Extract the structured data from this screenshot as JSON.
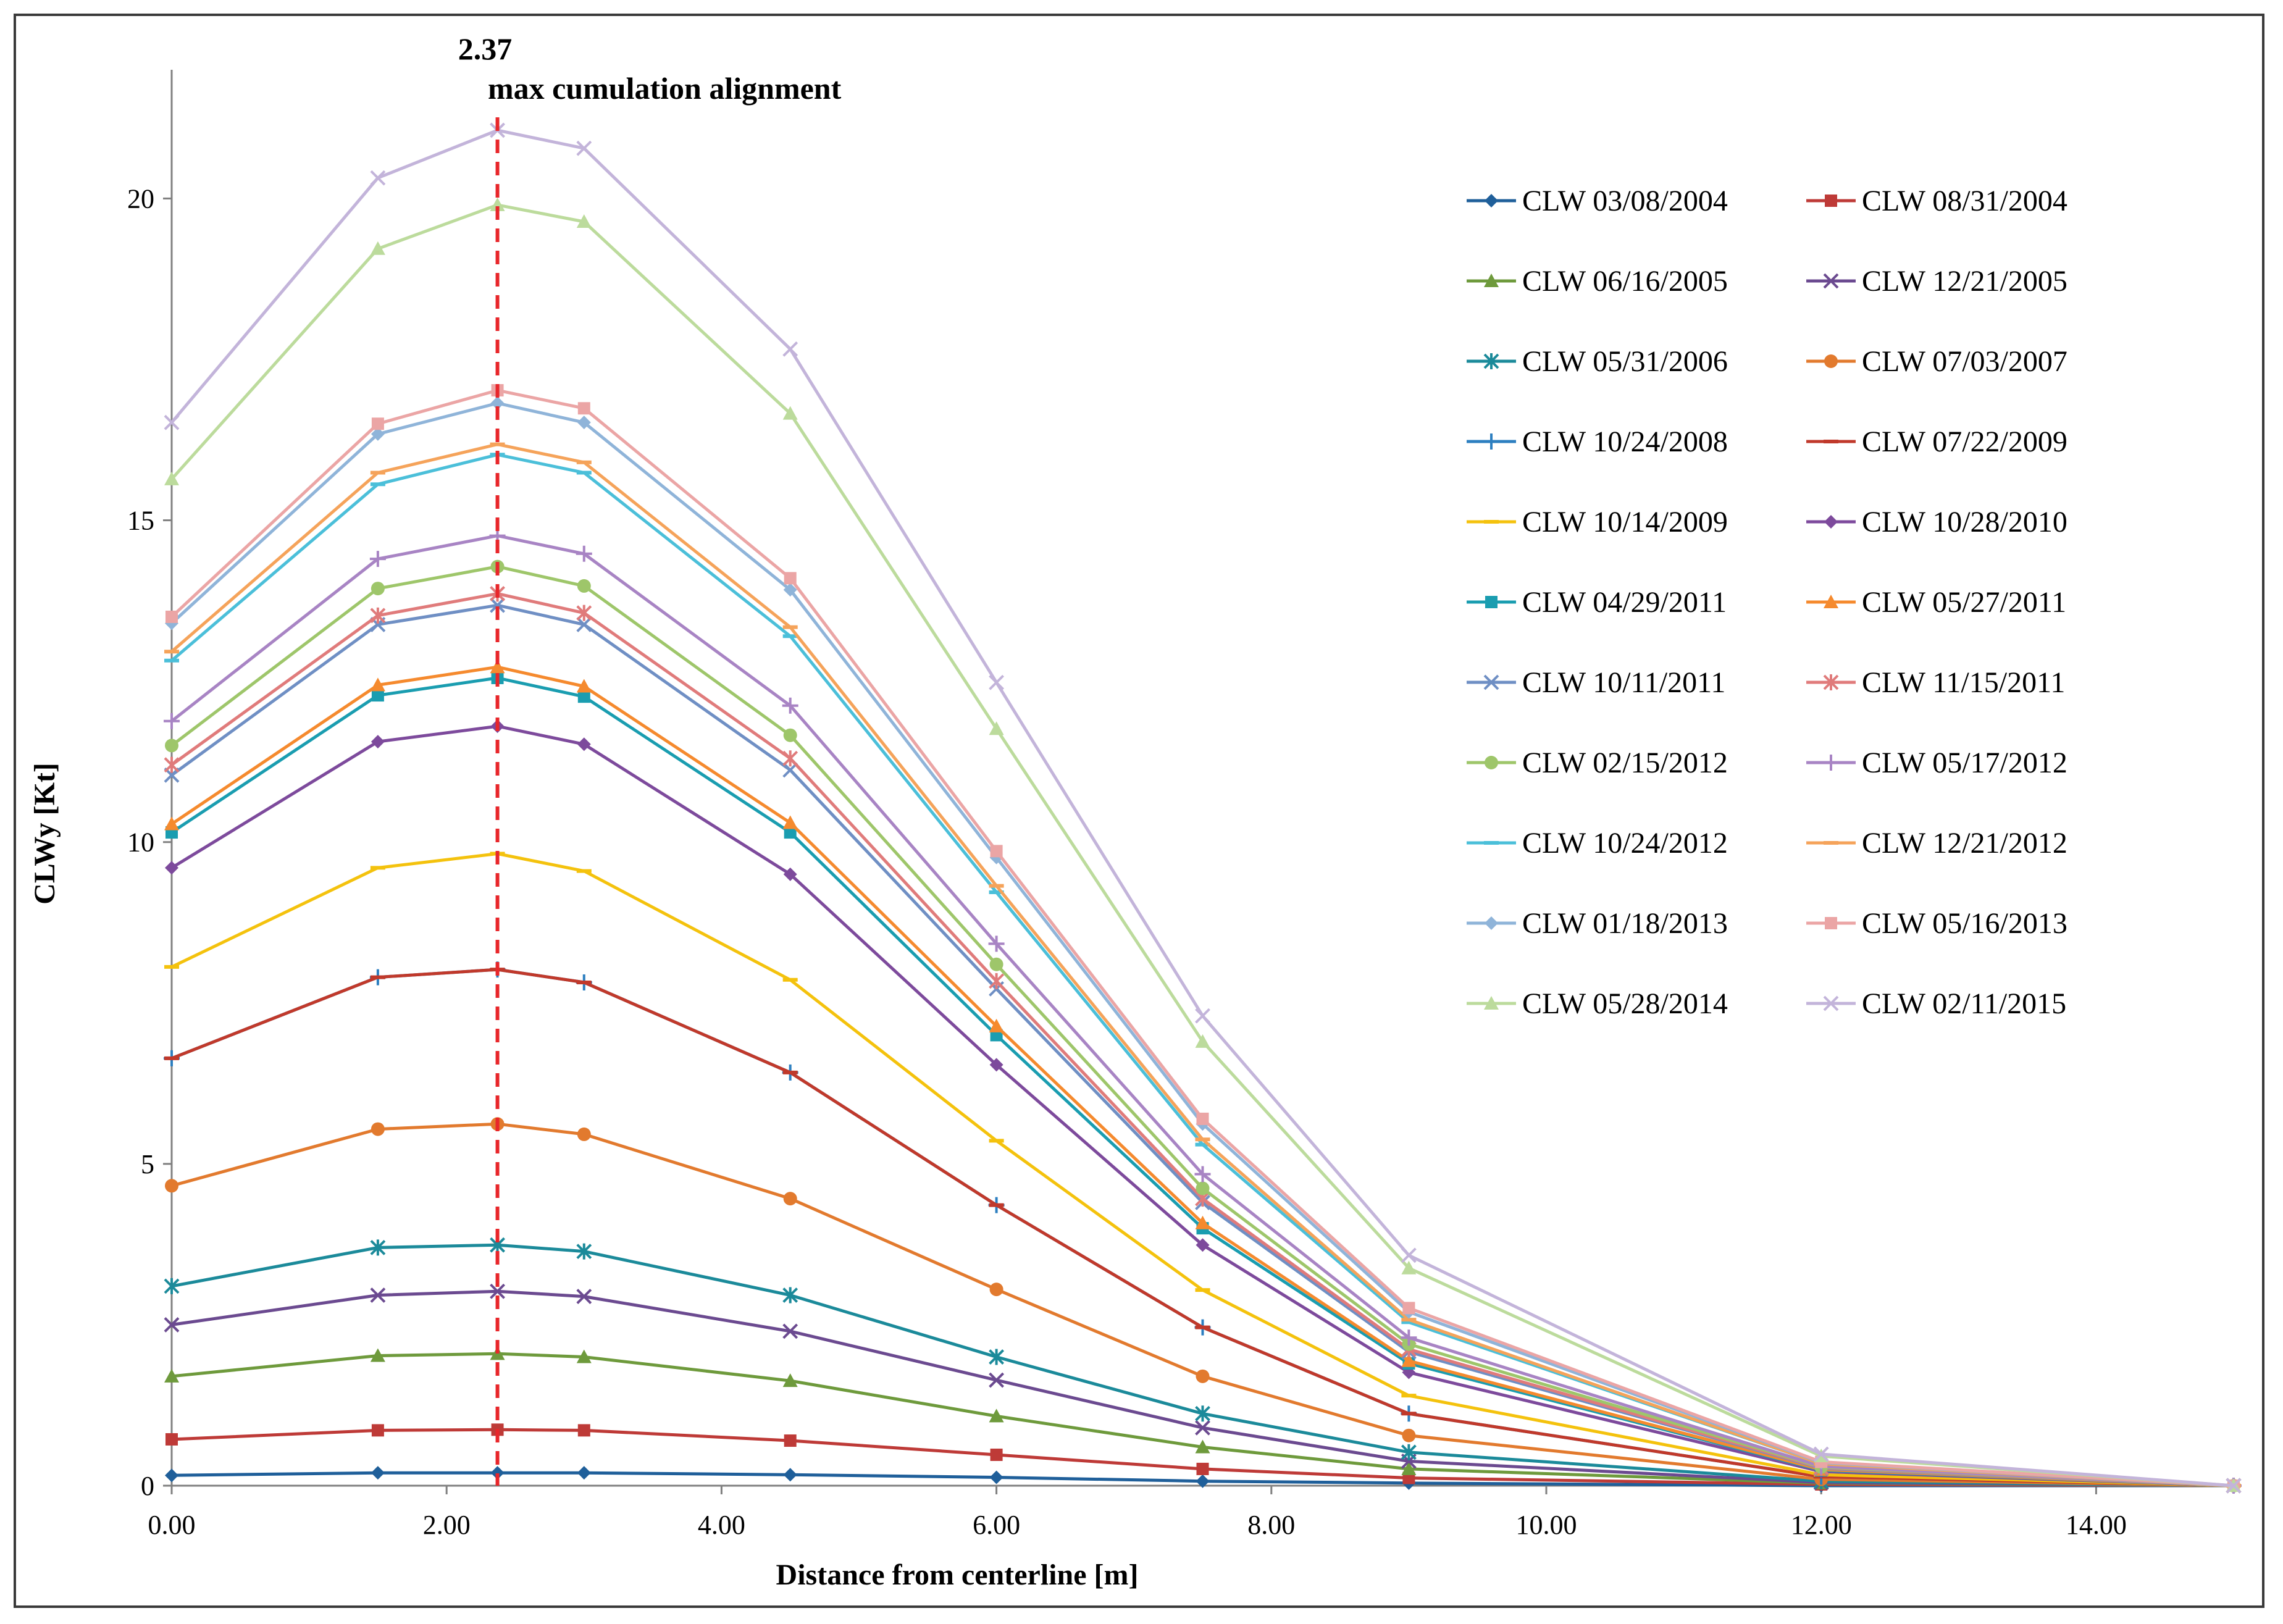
{
  "chart_data": {
    "type": "line",
    "xlabel": "Distance from centerline [m]",
    "ylabel": "CLWy [Kt]",
    "xlim": [
      0,
      15
    ],
    "ylim": [
      0,
      22
    ],
    "x_ticks": [
      "0.00",
      "2.00",
      "4.00",
      "6.00",
      "8.00",
      "10.00",
      "12.00",
      "14.00"
    ],
    "y_ticks": [
      "0",
      "5",
      "10",
      "15",
      "20"
    ],
    "grid": false,
    "legend_position": "right",
    "x": [
      0,
      1.5,
      2.37,
      3,
      4.5,
      6,
      7.5,
      9,
      12,
      15
    ],
    "annotation": {
      "value_label": "2.37",
      "text": "max cumulation alignment",
      "x": 2.37,
      "color": "#e8262a"
    },
    "series": [
      {
        "name": "CLW 03/08/2004",
        "color": "#1f5f9a",
        "marker": "diamond",
        "values": [
          0.16,
          0.2,
          0.2,
          0.2,
          0.17,
          0.13,
          0.07,
          0.04,
          0.0,
          0.0
        ]
      },
      {
        "name": "CLW 08/31/2004",
        "color": "#be3a37",
        "marker": "square",
        "values": [
          0.72,
          0.86,
          0.87,
          0.86,
          0.7,
          0.48,
          0.26,
          0.12,
          0.02,
          0.0
        ]
      },
      {
        "name": "CLW 06/16/2005",
        "color": "#6e9a3c",
        "marker": "triangle",
        "values": [
          1.7,
          2.02,
          2.05,
          2.0,
          1.63,
          1.08,
          0.6,
          0.26,
          0.04,
          0.0
        ]
      },
      {
        "name": "CLW 12/21/2005",
        "color": "#6b4a90",
        "marker": "x",
        "values": [
          2.5,
          2.96,
          3.02,
          2.94,
          2.4,
          1.64,
          0.9,
          0.38,
          0.05,
          0.0
        ]
      },
      {
        "name": "CLW 05/31/2006",
        "color": "#1b8a9a",
        "marker": "asterisk",
        "values": [
          3.1,
          3.7,
          3.74,
          3.64,
          2.96,
          2.0,
          1.12,
          0.52,
          0.07,
          0.0
        ]
      },
      {
        "name": "CLW 07/03/2007",
        "color": "#e27a2e",
        "marker": "circle",
        "values": [
          4.66,
          5.54,
          5.62,
          5.46,
          4.46,
          3.05,
          1.7,
          0.78,
          0.1,
          0.0
        ]
      },
      {
        "name": "CLW 10/24/2008",
        "color": "#2d7fc0",
        "marker": "plus",
        "values": [
          6.64,
          7.9,
          8.02,
          7.82,
          6.42,
          4.36,
          2.46,
          1.12,
          0.14,
          0.0
        ]
      },
      {
        "name": "CLW 07/22/2009",
        "color": "#c0392b",
        "marker": "dash",
        "values": [
          6.64,
          7.9,
          8.02,
          7.82,
          6.42,
          4.36,
          2.46,
          1.12,
          0.14,
          0.0
        ]
      },
      {
        "name": "CLW 10/14/2009",
        "color": "#f4c20d",
        "marker": "dash",
        "values": [
          8.06,
          9.6,
          9.82,
          9.55,
          7.86,
          5.36,
          3.04,
          1.4,
          0.17,
          0.0
        ]
      },
      {
        "name": "CLW 10/28/2010",
        "color": "#7d4a9c",
        "marker": "diamond",
        "values": [
          9.6,
          11.56,
          11.8,
          11.52,
          9.5,
          6.54,
          3.74,
          1.76,
          0.22,
          0.0
        ]
      },
      {
        "name": "CLW 04/29/2011",
        "color": "#1a9db0",
        "marker": "square",
        "values": [
          10.15,
          12.28,
          12.55,
          12.26,
          10.15,
          7.0,
          4.0,
          1.9,
          0.24,
          0.0
        ]
      },
      {
        "name": "CLW 05/27/2011",
        "color": "#f58a2e",
        "marker": "triangle",
        "values": [
          10.28,
          12.44,
          12.72,
          12.42,
          10.3,
          7.14,
          4.08,
          1.94,
          0.25,
          0.0
        ]
      },
      {
        "name": "CLW 10/11/2011",
        "color": "#6f8fc4",
        "marker": "x",
        "values": [
          11.04,
          13.38,
          13.68,
          13.38,
          11.12,
          7.72,
          4.4,
          2.08,
          0.27,
          0.0
        ]
      },
      {
        "name": "CLW 11/15/2011",
        "color": "#e07b7b",
        "marker": "asterisk",
        "values": [
          11.2,
          13.52,
          13.86,
          13.56,
          11.3,
          7.84,
          4.46,
          2.12,
          0.28,
          0.0
        ]
      },
      {
        "name": "CLW 02/15/2012",
        "color": "#9ec66a",
        "marker": "circle",
        "values": [
          11.5,
          13.94,
          14.28,
          13.98,
          11.66,
          8.1,
          4.62,
          2.2,
          0.29,
          0.0
        ]
      },
      {
        "name": "CLW 05/17/2012",
        "color": "#a884c4",
        "marker": "plus",
        "values": [
          11.88,
          14.4,
          14.76,
          14.48,
          12.12,
          8.42,
          4.84,
          2.3,
          0.3,
          0.0
        ]
      },
      {
        "name": "CLW 10/24/2012",
        "color": "#4bbfd9",
        "marker": "dash",
        "values": [
          12.82,
          15.56,
          16.02,
          15.74,
          13.2,
          9.22,
          5.3,
          2.54,
          0.34,
          0.0
        ]
      },
      {
        "name": "CLW 12/21/2012",
        "color": "#f5a35a",
        "marker": "dash",
        "values": [
          12.96,
          15.74,
          16.18,
          15.9,
          13.34,
          9.32,
          5.38,
          2.58,
          0.34,
          0.0
        ]
      },
      {
        "name": "CLW 01/18/2013",
        "color": "#8fb4d9",
        "marker": "diamond",
        "values": [
          13.4,
          16.34,
          16.82,
          16.52,
          13.92,
          9.76,
          5.62,
          2.7,
          0.36,
          0.0
        ]
      },
      {
        "name": "CLW 05/16/2013",
        "color": "#eba5a5",
        "marker": "square",
        "values": [
          13.5,
          16.5,
          17.02,
          16.74,
          14.1,
          9.86,
          5.7,
          2.76,
          0.37,
          0.0
        ]
      },
      {
        "name": "CLW 05/28/2014",
        "color": "#bcdb9c",
        "marker": "triangle",
        "values": [
          15.64,
          19.22,
          19.9,
          19.64,
          16.66,
          11.76,
          6.9,
          3.38,
          0.46,
          0.0
        ]
      },
      {
        "name": "CLW 02/11/2015",
        "color": "#c3b4da",
        "marker": "x",
        "values": [
          16.52,
          20.32,
          21.06,
          20.78,
          17.66,
          12.48,
          7.3,
          3.58,
          0.49,
          0.0
        ]
      }
    ]
  }
}
